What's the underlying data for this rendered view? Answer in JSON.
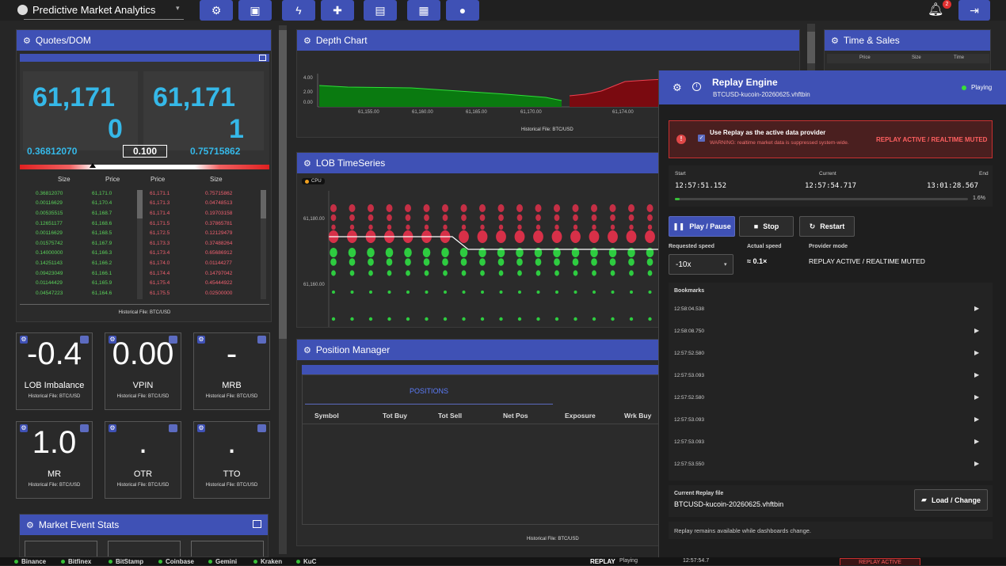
{
  "app": {
    "title": "Predictive Market Analytics",
    "notif_count": "2"
  },
  "toolbar": {
    "icons": [
      "gear-icon",
      "monitor-icon",
      "bolt-icon",
      "puzzle-icon",
      "chart-icon",
      "grid-icon",
      "account-icon"
    ]
  },
  "quotes": {
    "title": "Quotes/DOM",
    "bid_price_a": "61,171",
    "bid_price_b": "0",
    "ask_price_a": "61,171",
    "ask_price_b": "1",
    "bid_size": "0.36812070",
    "spread": "0.100",
    "ask_size": "0.75715862",
    "headers": [
      "Size",
      "Price",
      "Price",
      "Size"
    ],
    "rows": [
      [
        "0.36812070",
        "61,171.0",
        "61,171.1",
        "0.75715862"
      ],
      [
        "0.00116629",
        "61,170.4",
        "61,171.3",
        "0.04748513"
      ],
      [
        "0.00535515",
        "61,168.7",
        "61,171.4",
        "0.19703158"
      ],
      [
        "0.12651177",
        "61,168.6",
        "61,171.5",
        "0.37865781"
      ],
      [
        "0.00116629",
        "61,168.5",
        "61,172.5",
        "0.12129479"
      ],
      [
        "0.01575742",
        "61,167.9",
        "61,173.3",
        "0.37488264"
      ],
      [
        "0.14000000",
        "61,166.3",
        "61,173.4",
        "0.65686912"
      ],
      [
        "0.14251143",
        "61,166.2",
        "61,174.0",
        "0.01144277"
      ],
      [
        "0.09423049",
        "61,166.1",
        "61,174.4",
        "0.14797042"
      ],
      [
        "0.01144429",
        "61,165.9",
        "61,175.4",
        "0.45444922"
      ],
      [
        "0.04547223",
        "61,164.6",
        "61,175.5",
        "0.02500000"
      ]
    ],
    "footer": "Historical File: BTC/USD"
  },
  "metrics": [
    {
      "value": "-0.4",
      "label": "LOB Imbalance",
      "sub": "Historical File: BTC/USD"
    },
    {
      "value": "0.00",
      "label": "VPIN",
      "sub": "Historical File: BTC/USD"
    },
    {
      "value": "-",
      "label": "MRB",
      "sub": "Historical File: BTC/USD"
    },
    {
      "value": "1.0",
      "label": "MR",
      "sub": "Historical File: BTC/USD"
    },
    {
      "value": ".",
      "label": "OTR",
      "sub": "Historical File: BTC/USD"
    },
    {
      "value": ".",
      "label": "TTO",
      "sub": "Historical File: BTC/USD"
    }
  ],
  "market_event_stats": {
    "title": "Market Event Stats"
  },
  "depth": {
    "title": "Depth Chart",
    "y_ticks": [
      "4.00",
      "2.00",
      "0.00"
    ],
    "x_ticks": [
      "61,155.00",
      "61,160.00",
      "61,165.00",
      "61,170.00",
      "61,174.00"
    ],
    "footer": "Historical File: BTC/USD"
  },
  "lob_ts": {
    "title": "LOB TimeSeries",
    "badge": "CPU",
    "y_ticks": [
      "61,180.00",
      "61,160.00"
    ]
  },
  "position": {
    "title": "Position Manager",
    "tab": "POSITIONS",
    "columns": [
      "Symbol",
      "Tot Buy",
      "Tot Sell",
      "Net Pos",
      "Exposure",
      "Wrk Buy"
    ],
    "footer": "Historical File: BTC/USD"
  },
  "time_sales": {
    "title": "Time & Sales",
    "columns": [
      "Price",
      "Size",
      "Time"
    ]
  },
  "replay": {
    "title": "Replay Engine",
    "file": "BTCUSD-kucoin-20260625.vhftbin",
    "status": "Playing",
    "banner_title": "Use Replay as the active data provider",
    "banner_warning": "WARNING: realtime market data is suppressed system-wide.",
    "banner_badge": "REPLAY ACTIVE / REALTIME MUTED",
    "start_label": "Start",
    "start": "12:57:51.152",
    "current_label": "Current",
    "current": "12:57:54.717",
    "end_label": "End",
    "end": "13:01:28.567",
    "progress": 0.016,
    "progress_label": "1.6%",
    "play_label": "Play / Pause",
    "stop_label": "Stop",
    "restart_label": "Restart",
    "req_speed_label": "Requested speed",
    "req_speed": "-10x",
    "act_speed_label": "Actual speed",
    "act_speed": "≈ 0.1×",
    "mode_label": "Provider mode",
    "mode": "REPLAY ACTIVE / REALTIME MUTED",
    "bookmarks_label": "Bookmarks",
    "bookmarks": [
      "12:58:04.538",
      "12:58:08.750",
      "12:57:52.580",
      "12:57:53.093",
      "12:57:52.580",
      "12:57:53.093",
      "12:57:53.093",
      "12:57:53.550"
    ],
    "current_file_label": "Current Replay file",
    "load_label": "Load / Change",
    "note": "Replay remains available while dashboards change."
  },
  "bottom": {
    "exchanges": [
      "Binance",
      "Bitfinex",
      "BitStamp",
      "Coinbase",
      "Gemini",
      "Kraken",
      "KuC"
    ],
    "replay_label": "REPLAY",
    "replay_state": "Playing",
    "replay_time": "12:57:54.7",
    "badge": "REPLAY ACTIVE"
  },
  "colors": {
    "accent": "#3f51b5",
    "bid": "#2ecc40",
    "ask": "#e0304a"
  }
}
